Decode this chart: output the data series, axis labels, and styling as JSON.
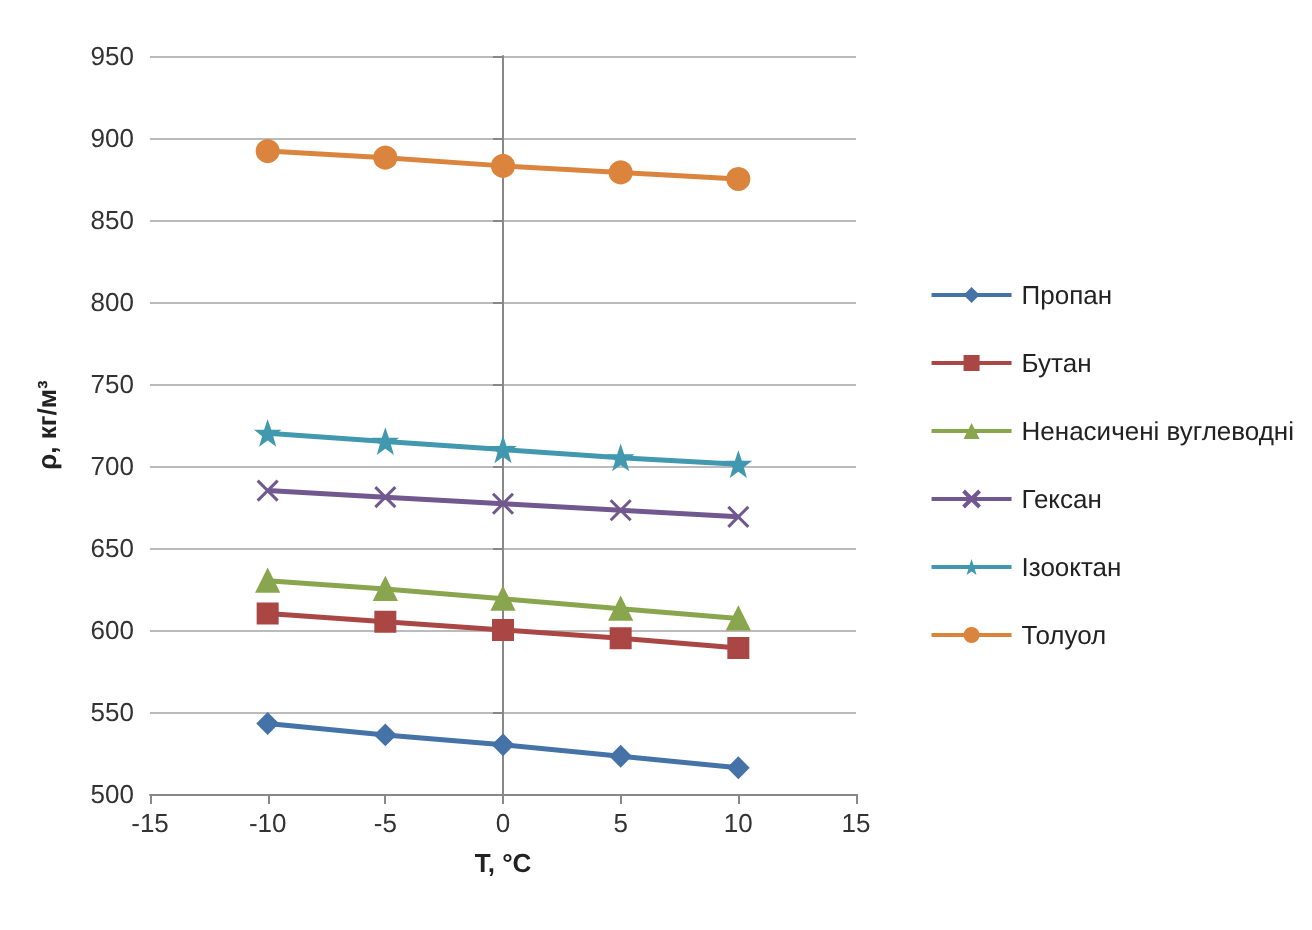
{
  "chart_data": {
    "type": "line",
    "xlabel": "T, °C",
    "ylabel": "ρ, кг/м³",
    "x": [
      -10,
      -5,
      0,
      5,
      10
    ],
    "xlim": [
      -15,
      15
    ],
    "xticks": [
      -15,
      -10,
      -5,
      0,
      5,
      10,
      15
    ],
    "ylim": [
      500,
      950
    ],
    "yticks": [
      500,
      550,
      600,
      650,
      700,
      750,
      800,
      850,
      900,
      950
    ],
    "grid": "y",
    "legend": "right",
    "line_style": "solid",
    "series": [
      {
        "name": "Пропан",
        "color": "#4572a7",
        "marker": "diamond",
        "values": [
          543,
          536,
          530,
          523,
          516
        ]
      },
      {
        "name": "Бутан",
        "color": "#aa4643",
        "marker": "square",
        "values": [
          610,
          605,
          600,
          595,
          589
        ]
      },
      {
        "name": "Ненасичені вуглеводні",
        "color": "#89a54e",
        "marker": "triangle",
        "values": [
          630,
          625,
          619,
          613,
          607
        ]
      },
      {
        "name": "Гексан",
        "color": "#71588f",
        "marker": "cross",
        "values": [
          685,
          681,
          677,
          673,
          669
        ]
      },
      {
        "name": "Ізооктан",
        "color": "#4198af",
        "marker": "star",
        "values": [
          720,
          715,
          710,
          705,
          701
        ]
      },
      {
        "name": "Толуол",
        "color": "#db843d",
        "marker": "circle",
        "values": [
          892,
          888,
          883,
          879,
          875
        ]
      }
    ]
  }
}
